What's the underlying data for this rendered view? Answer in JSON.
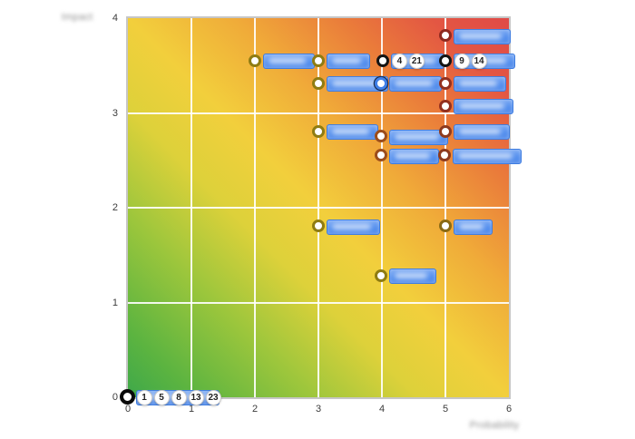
{
  "chart": {
    "x_axis": {
      "title": "Probability",
      "title_blurred": true,
      "ticks": [
        "0",
        "1",
        "2",
        "3",
        "4",
        "5",
        "6"
      ]
    },
    "y_axis": {
      "title": "Impact",
      "title_blurred": true,
      "ticks": [
        "0",
        "1",
        "2",
        "3",
        "4"
      ]
    }
  },
  "colors": {
    "label_blue": "#5590ee",
    "gradient_low": "#3ea84a",
    "gradient_mid": "#f2cf3c",
    "gradient_high": "#e04a47",
    "grid": "#ffffff",
    "badge_bg": "#ffffff",
    "cluster_ring": "#111111",
    "selected_ring": "#3f7fe8"
  },
  "chart_data": {
    "type": "scatter",
    "title": "Risk matrix (probability vs impact heatmap)",
    "xlabel": "Probability",
    "ylabel": "Impact",
    "xlim": [
      0,
      6
    ],
    "ylim": [
      0,
      4
    ],
    "grid": true,
    "legend": false,
    "background": "diagonal green-yellow-red risk gradient",
    "note": "point labels are blurred/redacted in source image; badge numbers are risk IDs",
    "points": [
      {
        "x": 0,
        "y": 0,
        "ring_color": "#0a0a0a",
        "size": "lg",
        "badges": [
          "1",
          "5",
          "8",
          "13",
          "23"
        ],
        "label_blurred": true,
        "label_width": 90
      },
      {
        "x": 2.0,
        "y": 3.55,
        "ring_color": "#8f7c12",
        "label_blurred": true,
        "label_width": 55
      },
      {
        "x": 3.0,
        "y": 3.55,
        "ring_color": "#8f7c12",
        "label_blurred": true,
        "label_width": 46
      },
      {
        "x": 4.02,
        "y": 3.55,
        "ring_color": "#141414",
        "badges": [
          "4",
          "21"
        ],
        "label_blurred": true,
        "label_width": 57
      },
      {
        "x": 5.0,
        "y": 3.55,
        "ring_color": "#141414",
        "badges": [
          "9",
          "14"
        ],
        "label_blurred": true,
        "label_width": 66
      },
      {
        "x": 5.0,
        "y": 3.81,
        "ring_color": "#8e2a20",
        "label_blurred": true,
        "label_width": 61
      },
      {
        "x": 3.0,
        "y": 3.31,
        "ring_color": "#8f7c12",
        "label_blurred": true,
        "label_width": 66
      },
      {
        "x": 3.99,
        "y": 3.31,
        "ring_color": "#3f7fe8",
        "selected": true,
        "label_blurred": true,
        "label_width": 56
      },
      {
        "x": 5.0,
        "y": 3.31,
        "ring_color": "#93301f",
        "label_blurred": true,
        "label_width": 56
      },
      {
        "x": 5.0,
        "y": 3.07,
        "ring_color": "#93301f",
        "label_blurred": true,
        "label_width": 64
      },
      {
        "x": 3.0,
        "y": 2.8,
        "ring_color": "#8f7c12",
        "label_blurred": true,
        "label_width": 55
      },
      {
        "x": 5.0,
        "y": 2.8,
        "ring_color": "#8e3a1e",
        "label_blurred": true,
        "label_width": 60
      },
      {
        "x": 3.99,
        "y": 2.75,
        "ring_color": "#9c4d1b",
        "label_blurred": true,
        "label_width": 63
      },
      {
        "x": 3.99,
        "y": 2.55,
        "ring_color": "#9c4d1b",
        "label_blurred": true,
        "label_width": 53
      },
      {
        "x": 4.99,
        "y": 2.55,
        "ring_color": "#8e3a1e",
        "label_blurred": true,
        "label_width": 74
      },
      {
        "x": 3.0,
        "y": 1.8,
        "ring_color": "#8f7c12",
        "label_blurred": true,
        "label_width": 57
      },
      {
        "x": 5.0,
        "y": 1.8,
        "ring_color": "#8a6a14",
        "label_blurred": true,
        "label_width": 41
      },
      {
        "x": 3.99,
        "y": 1.28,
        "ring_color": "#8f7c12",
        "label_blurred": true,
        "label_width": 50
      }
    ]
  }
}
